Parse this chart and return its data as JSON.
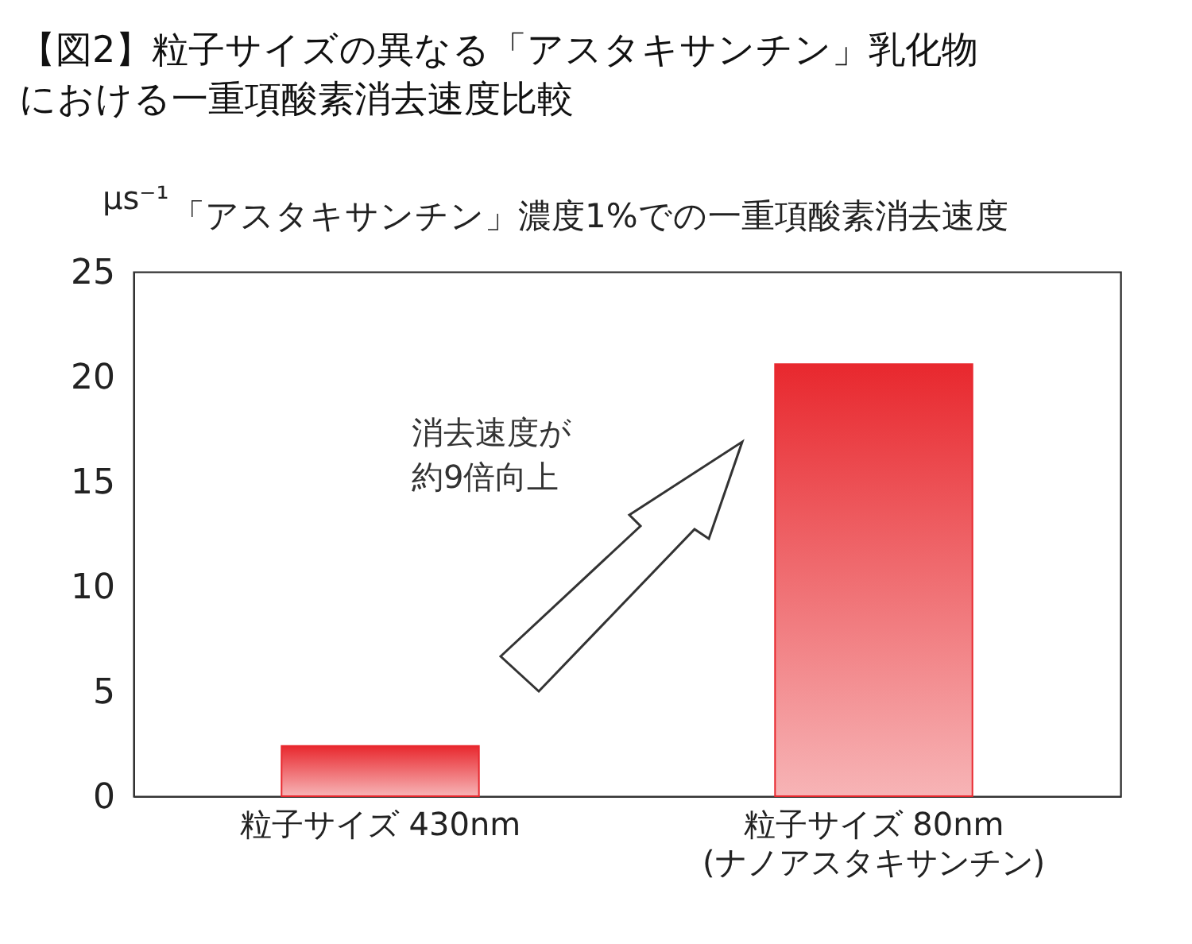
{
  "chart_data": {
    "type": "bar",
    "title": "【図2】粒子サイズの異なる「アスタキサンチン」乳化物における一重項酸素消去速度比較",
    "subtitle": "「アスタキサンチン」濃度1%での一重項酸素消去速度",
    "ylabel": "μs⁻¹",
    "categories": [
      "粒子サイズ 430nm",
      "粒子サイズ 80nm\n(ナノアスタキサンチン)"
    ],
    "values": [
      2.4,
      20.6
    ],
    "color": "#e8282e",
    "ylim": [
      0,
      25
    ],
    "yticks": [
      0,
      5,
      10,
      15,
      20,
      25
    ],
    "grid": false,
    "annotations": [
      "消去速度が約9倍向上"
    ]
  }
}
